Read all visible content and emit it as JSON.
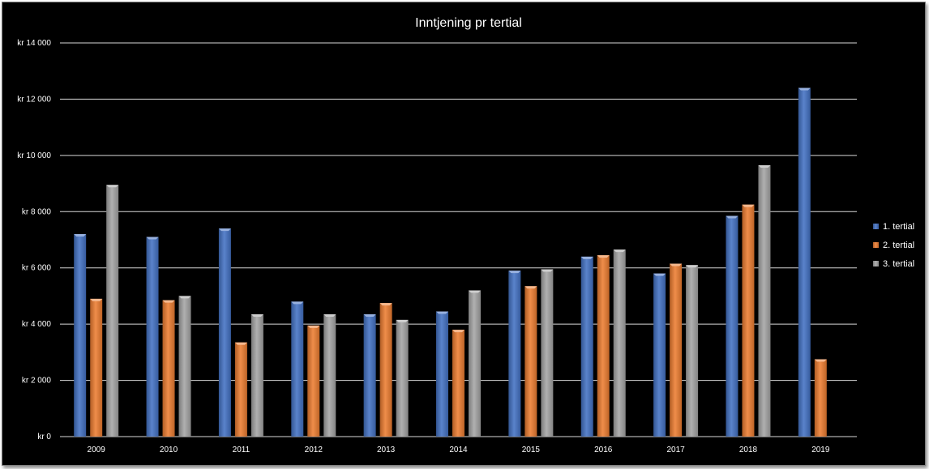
{
  "chart_data": {
    "type": "bar",
    "title": "Inntjening pr tertial",
    "xlabel": "",
    "ylabel": "",
    "categories": [
      "2009",
      "2010",
      "2011",
      "2012",
      "2013",
      "2014",
      "2015",
      "2016",
      "2017",
      "2018",
      "2019"
    ],
    "series": [
      {
        "name": "1. tertial",
        "color": "#4472c4",
        "values": [
          7200,
          7100,
          7400,
          4800,
          4350,
          4450,
          5900,
          6400,
          5800,
          7850,
          12400
        ]
      },
      {
        "name": "2. tertial",
        "color": "#ed7d31",
        "values": [
          4900,
          4850,
          3350,
          3950,
          4750,
          3800,
          5350,
          6450,
          6150,
          8250,
          2750
        ]
      },
      {
        "name": "3. tertial",
        "color": "#a5a5a5",
        "values": [
          8950,
          5000,
          4350,
          4350,
          4150,
          5200,
          5950,
          6650,
          6100,
          9650,
          null
        ]
      }
    ],
    "ylim": [
      0,
      14000
    ],
    "yticks": [
      0,
      2000,
      4000,
      6000,
      8000,
      10000,
      12000,
      14000
    ],
    "ytick_labels": [
      "kr   0",
      "kr 2 000",
      "kr 4 000",
      "kr 6 000",
      "kr 8 000",
      "kr 10 000",
      "kr 12 000",
      "kr 14 000"
    ],
    "grid": true,
    "legend_position": "right",
    "background": "#000000"
  }
}
